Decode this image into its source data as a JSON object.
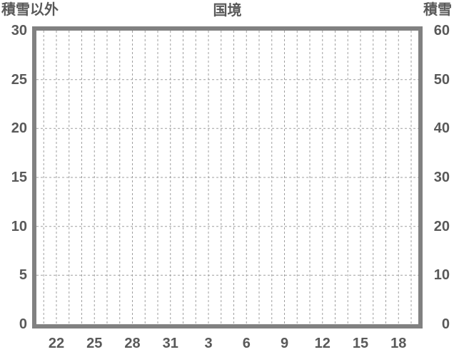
{
  "chart_data": {
    "type": "line",
    "title": "国境",
    "series": [],
    "plot_area_empty": true,
    "legend": "none",
    "grid": {
      "vertical_minor": "dashed, one per day",
      "horizontal_major": "dashed at each labeled tick"
    },
    "axes": {
      "left": {
        "label": "積雪以外",
        "min": 0,
        "max": 30,
        "tick_interval": 5,
        "tick_labels": [
          "30",
          "25",
          "20",
          "15",
          "10",
          "5",
          "0"
        ]
      },
      "right": {
        "label": "積雪",
        "min": 0,
        "max": 60,
        "tick_interval": 10,
        "tick_labels": [
          "60",
          "50",
          "40",
          "30",
          "20",
          "10",
          "0"
        ]
      },
      "x": {
        "tick_labels": [
          "22",
          "25",
          "28",
          "31",
          "3",
          "6",
          "9",
          "12",
          "15",
          "18"
        ],
        "minor_gridlines_total": 30,
        "first_label_gridline_index": 1,
        "label_every_n_gridlines": 3
      }
    },
    "colors": {
      "text": "#595959",
      "frame": "#818181",
      "gridline": "#9f9f9f",
      "background": "#ffffff"
    }
  }
}
